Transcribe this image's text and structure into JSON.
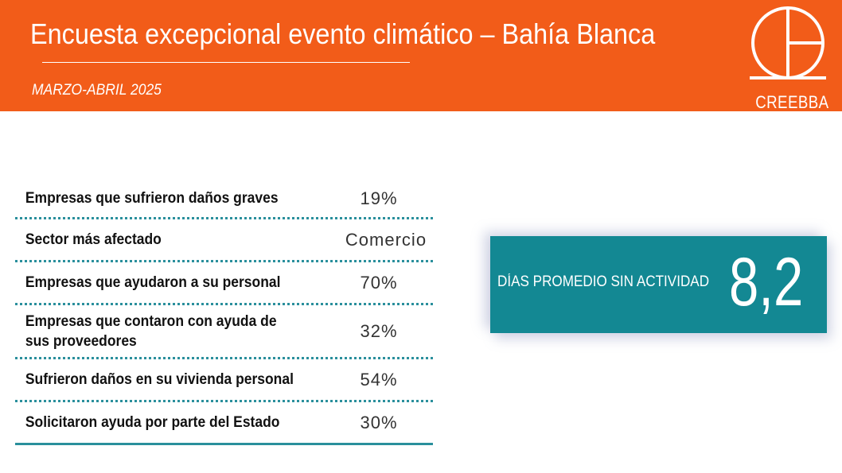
{
  "header": {
    "title": "Encuesta excepcional evento climático – Bahía Blanca",
    "subtitle": "MARZO-ABRIL 2025",
    "logo_text": "CREEBBA",
    "background_color": "#f25c19"
  },
  "stats": [
    {
      "label": "Empresas que sufrieron daños graves",
      "value": "19%"
    },
    {
      "label": "Sector más afectado",
      "value": "Comercio"
    },
    {
      "label": "Empresas que ayudaron a su personal",
      "value": "70%"
    },
    {
      "label": "Empresas que contaron con ayuda de sus proveedores",
      "value": "32%"
    },
    {
      "label": "Sufrieron daños en su vivienda personal",
      "value": "54%"
    },
    {
      "label": "Solicitaron ayuda por parte del Estado",
      "value": "30%"
    }
  ],
  "kpi": {
    "label": "DÍAS PROMEDIO SIN ACTIVIDAD",
    "value": "8,2",
    "background_color": "#138893"
  },
  "colors": {
    "accent": "#f25c19",
    "teal": "#138893"
  }
}
